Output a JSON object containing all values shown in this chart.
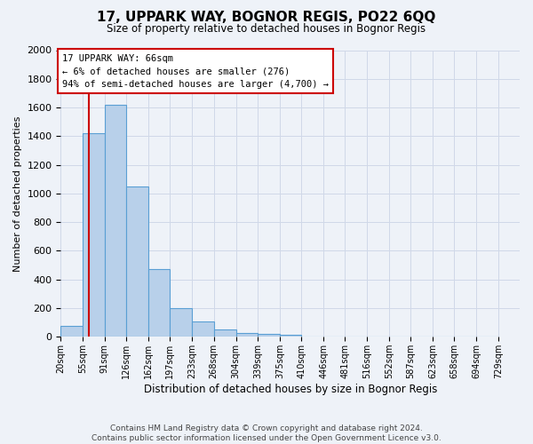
{
  "title": "17, UPPARK WAY, BOGNOR REGIS, PO22 6QQ",
  "subtitle": "Size of property relative to detached houses in Bognor Regis",
  "xlabel": "Distribution of detached houses by size in Bognor Regis",
  "ylabel": "Number of detached properties",
  "footer": "Contains HM Land Registry data © Crown copyright and database right 2024.\nContains public sector information licensed under the Open Government Licence v3.0.",
  "bin_labels": [
    "20sqm",
    "55sqm",
    "91sqm",
    "126sqm",
    "162sqm",
    "197sqm",
    "233sqm",
    "268sqm",
    "304sqm",
    "339sqm",
    "375sqm",
    "410sqm",
    "446sqm",
    "481sqm",
    "516sqm",
    "552sqm",
    "587sqm",
    "623sqm",
    "658sqm",
    "694sqm",
    "729sqm"
  ],
  "bin_edges": [
    20,
    55,
    91,
    126,
    162,
    197,
    233,
    268,
    304,
    339,
    375,
    410,
    446,
    481,
    516,
    552,
    587,
    623,
    658,
    694,
    729
  ],
  "bar_heights": [
    75,
    1420,
    1620,
    1050,
    470,
    200,
    110,
    50,
    25,
    20,
    15,
    0,
    0,
    0,
    0,
    0,
    0,
    0,
    0,
    0
  ],
  "bar_color": "#b8d0ea",
  "bar_edge_color": "#5a9fd4",
  "property_size": 66,
  "vline_color": "#cc0000",
  "annotation_text": "17 UPPARK WAY: 66sqm\n← 6% of detached houses are smaller (276)\n94% of semi-detached houses are larger (4,700) →",
  "annotation_box_color": "#ffffff",
  "annotation_box_edge": "#cc0000",
  "ylim": [
    0,
    2000
  ],
  "yticks": [
    0,
    200,
    400,
    600,
    800,
    1000,
    1200,
    1400,
    1600,
    1800,
    2000
  ],
  "grid_color": "#d0d8e8",
  "bg_color": "#eef2f8",
  "figwidth": 6.0,
  "figheight": 5.0,
  "dpi": 100
}
